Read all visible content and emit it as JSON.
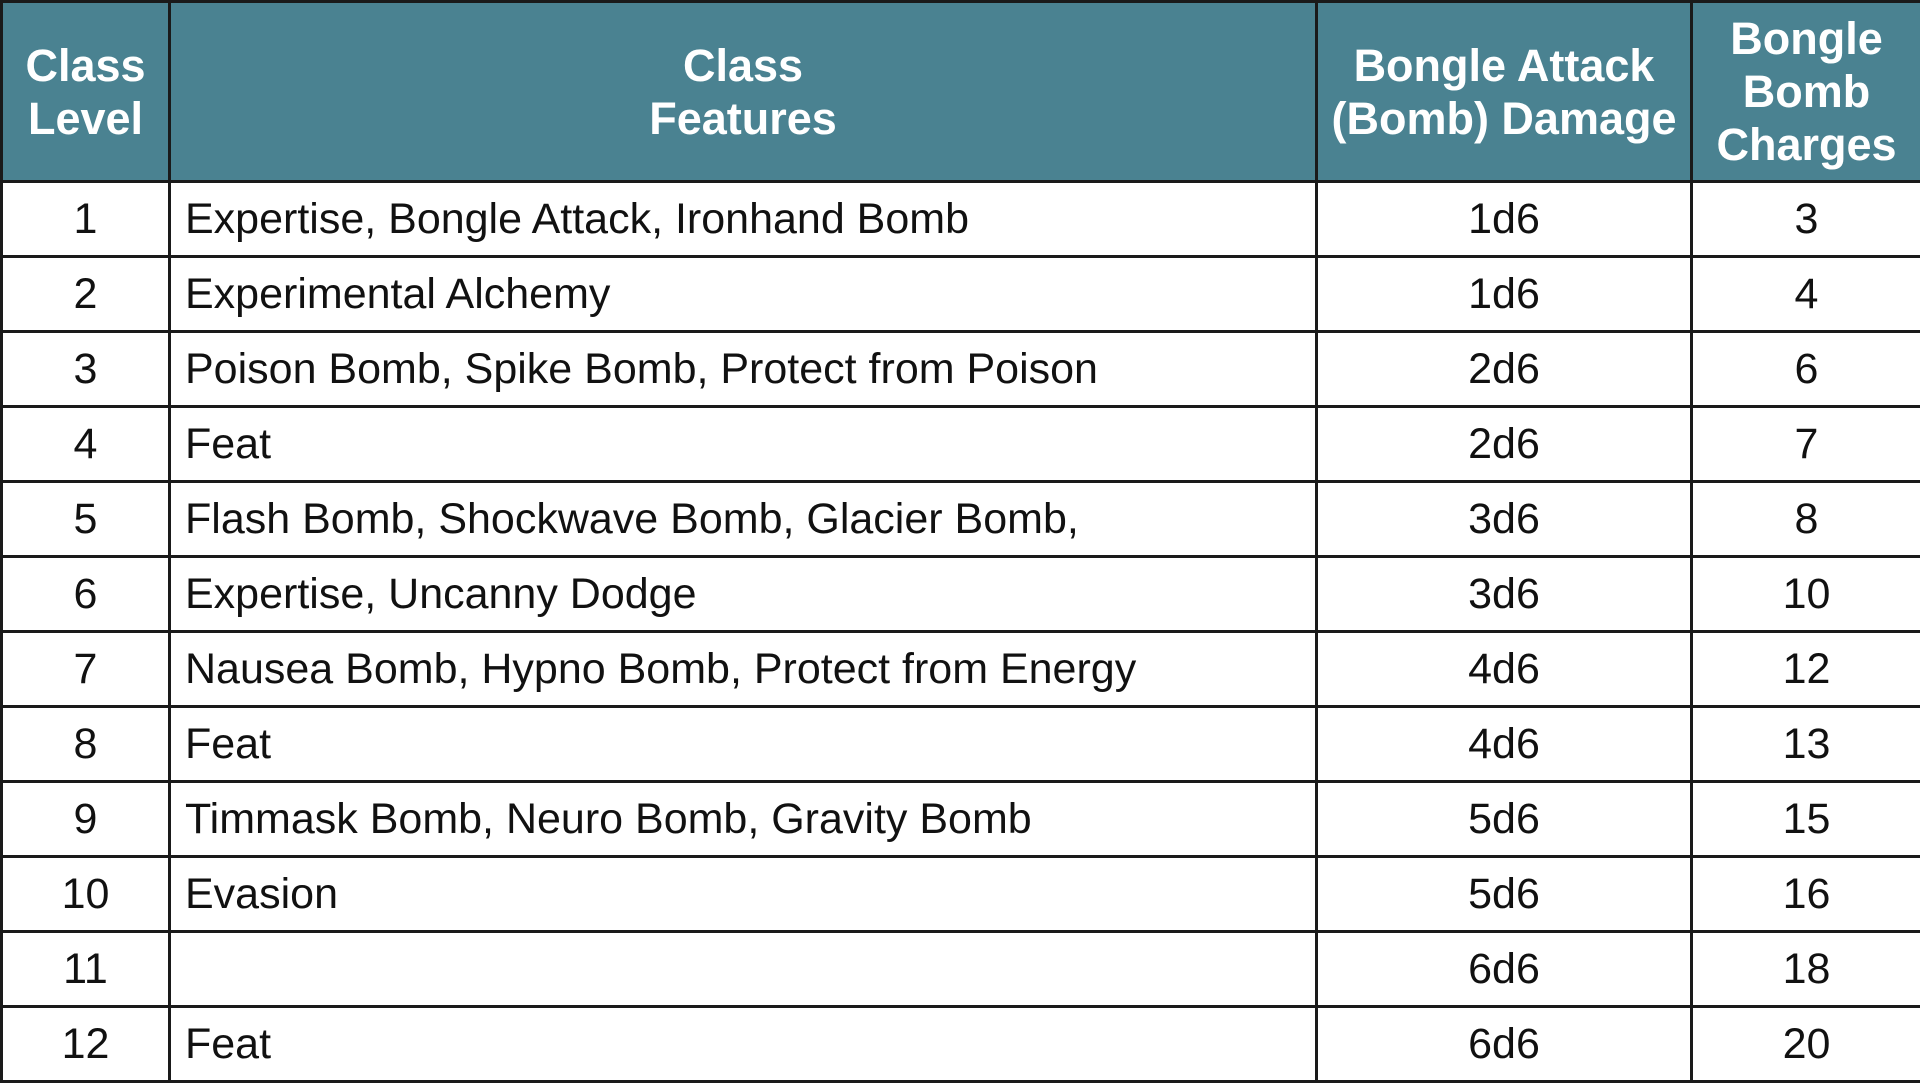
{
  "table": {
    "headers": {
      "level": "Class Level",
      "features": "Class Features",
      "damage": "Bongle Attack (Bomb) Damage",
      "charges": "Bongle Bomb Charges"
    },
    "header_bg_color": "#4a8291",
    "header_text_color": "#ffffff",
    "rows": [
      {
        "level": "1",
        "features": "Expertise, Bongle Attack, Ironhand Bomb",
        "damage": "1d6",
        "charges": "3"
      },
      {
        "level": "2",
        "features": "Experimental Alchemy",
        "damage": "1d6",
        "charges": "4"
      },
      {
        "level": "3",
        "features": "Poison Bomb, Spike Bomb, Protect from Poison",
        "damage": "2d6",
        "charges": "6"
      },
      {
        "level": "4",
        "features": "Feat",
        "damage": "2d6",
        "charges": "7"
      },
      {
        "level": "5",
        "features": "Flash Bomb, Shockwave Bomb, Glacier Bomb,",
        "damage": "3d6",
        "charges": "8"
      },
      {
        "level": "6",
        "features": "Expertise, Uncanny Dodge",
        "damage": "3d6",
        "charges": "10"
      },
      {
        "level": "7",
        "features": "Nausea Bomb, Hypno Bomb, Protect from Energy",
        "damage": "4d6",
        "charges": "12"
      },
      {
        "level": "8",
        "features": "Feat",
        "damage": "4d6",
        "charges": "13"
      },
      {
        "level": "9",
        "features": "Timmask Bomb, Neuro Bomb, Gravity Bomb",
        "damage": "5d6",
        "charges": "15"
      },
      {
        "level": "10",
        "features": "Evasion",
        "damage": "5d6",
        "charges": "16"
      },
      {
        "level": "11",
        "features": "",
        "damage": "6d6",
        "charges": "18"
      },
      {
        "level": "12",
        "features": "Feat",
        "damage": "6d6",
        "charges": "20"
      }
    ]
  }
}
